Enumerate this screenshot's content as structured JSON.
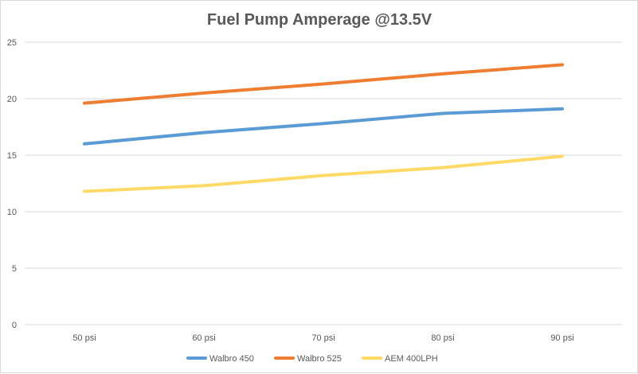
{
  "chart_data": {
    "type": "line",
    "title": "Fuel Pump Amperage @13.5V",
    "xlabel": "",
    "ylabel": "",
    "categories": [
      "50 psi",
      "60 psi",
      "70 psi",
      "80 psi",
      "90 psi"
    ],
    "yticks": [
      "0",
      "5",
      "10",
      "15",
      "20",
      "25"
    ],
    "ylim": [
      0,
      25
    ],
    "grid": true,
    "legend_position": "bottom",
    "series": [
      {
        "name": "Walbro 450",
        "color": "#5b9bd5",
        "values": [
          16.0,
          17.0,
          17.8,
          18.7,
          19.1
        ]
      },
      {
        "name": "Walbro 525",
        "color": "#ed7d31",
        "values": [
          19.6,
          20.5,
          21.3,
          22.2,
          23.0
        ]
      },
      {
        "name": "AEM 400LPH",
        "color": "#ffd966",
        "values": [
          11.8,
          12.3,
          13.2,
          13.9,
          14.9
        ]
      }
    ]
  }
}
